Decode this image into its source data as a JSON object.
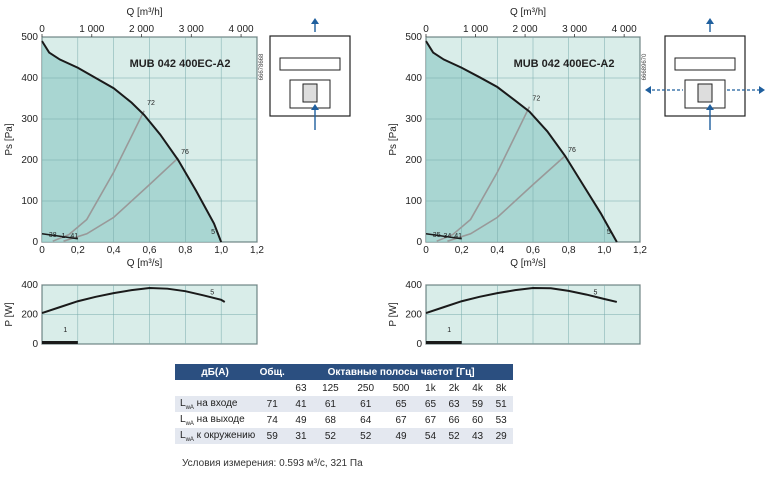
{
  "chart_data": [
    {
      "type": "line",
      "model": "MUB 042 400EC-A2",
      "code": "66678668",
      "top_xlabel": "Q [m³/h]",
      "top_ticks": [
        "0",
        "1 000",
        "2 000",
        "3 000",
        "4 000"
      ],
      "top_tick_values": [
        0,
        1000,
        2000,
        3000,
        4000
      ],
      "xlabel": "Q [m³/s]",
      "ylabel": "Ps [Pa]",
      "x_ticks": [
        "0",
        "0,2",
        "0,4",
        "0,6",
        "0,8",
        "1,0",
        "1,2"
      ],
      "xlim": [
        0,
        1.2
      ],
      "y_ticks": [
        "0",
        "100",
        "200",
        "300",
        "400",
        "500"
      ],
      "ylim": [
        0,
        500
      ],
      "grid": true,
      "series": [
        {
          "name": "5",
          "x": [
            0,
            0.04,
            0.1,
            0.2,
            0.3,
            0.4,
            0.5,
            0.57,
            0.66,
            0.76,
            0.86,
            0.96,
            1.0
          ],
          "y": [
            490,
            462,
            445,
            425,
            400,
            375,
            340,
            310,
            262,
            200,
            125,
            45,
            0
          ]
        },
        {
          "name": "1",
          "x": [
            0,
            0.1,
            0.2
          ],
          "y": [
            20,
            14,
            8
          ]
        }
      ],
      "system_curves": [
        {
          "name": "72",
          "x": [
            0.06,
            0.15,
            0.25,
            0.4,
            0.57
          ],
          "y": [
            2,
            18,
            55,
            170,
            320
          ]
        },
        {
          "name": "76",
          "x": [
            0.12,
            0.25,
            0.4,
            0.6,
            0.76
          ],
          "y": [
            2,
            20,
            60,
            140,
            205
          ]
        }
      ],
      "curve_labels": [
        "72",
        "76",
        "5",
        "38",
        "1",
        "41"
      ],
      "power": {
        "ylabel": "P [W]",
        "y_ticks": [
          "0",
          "200",
          "400"
        ],
        "ylim": [
          0,
          400
        ],
        "x": [
          0,
          0.1,
          0.2,
          0.3,
          0.4,
          0.5,
          0.6,
          0.7,
          0.8,
          0.9,
          1.0,
          1.02
        ],
        "y": [
          210,
          250,
          290,
          320,
          345,
          365,
          380,
          375,
          358,
          330,
          300,
          285
        ],
        "low_x": [
          0,
          0.1,
          0.2
        ],
        "low_y": [
          10,
          10,
          10
        ],
        "labels": [
          "5",
          "1"
        ]
      }
    },
    {
      "type": "line",
      "model": "MUB 042 400EC-A2",
      "code": "66689670",
      "top_xlabel": "Q [m³/h]",
      "top_ticks": [
        "0",
        "1 000",
        "2 000",
        "3 000",
        "4 000"
      ],
      "top_tick_values": [
        0,
        1000,
        2000,
        3000,
        4000
      ],
      "xlabel": "Q [m³/s]",
      "ylabel": "Ps [Pa]",
      "x_ticks": [
        "0",
        "0,2",
        "0,4",
        "0,6",
        "0,8",
        "1,0",
        "1,2"
      ],
      "xlim": [
        0,
        1.2
      ],
      "y_ticks": [
        "0",
        "100",
        "200",
        "300",
        "400",
        "500"
      ],
      "ylim": [
        0,
        500
      ],
      "grid": true,
      "series": [
        {
          "name": "5",
          "x": [
            0,
            0.04,
            0.1,
            0.2,
            0.3,
            0.4,
            0.5,
            0.58,
            0.68,
            0.78,
            0.88,
            0.98,
            1.07
          ],
          "y": [
            490,
            462,
            445,
            425,
            402,
            378,
            345,
            318,
            270,
            210,
            140,
            70,
            0
          ]
        },
        {
          "name": "1",
          "x": [
            0,
            0.1,
            0.2
          ],
          "y": [
            20,
            14,
            8
          ]
        }
      ],
      "system_curves": [
        {
          "name": "72",
          "x": [
            0.06,
            0.15,
            0.25,
            0.4,
            0.58
          ],
          "y": [
            2,
            18,
            55,
            170,
            330
          ]
        },
        {
          "name": "76",
          "x": [
            0.12,
            0.25,
            0.4,
            0.6,
            0.78
          ],
          "y": [
            2,
            20,
            60,
            140,
            210
          ]
        }
      ],
      "curve_labels": [
        "72",
        "76",
        "5",
        "35",
        "34",
        "41"
      ],
      "power": {
        "ylabel": "P [W]",
        "y_ticks": [
          "0",
          "200",
          "400"
        ],
        "ylim": [
          0,
          400
        ],
        "x": [
          0,
          0.1,
          0.2,
          0.3,
          0.4,
          0.5,
          0.6,
          0.7,
          0.8,
          0.9,
          1.0,
          1.07
        ],
        "y": [
          210,
          250,
          290,
          320,
          345,
          365,
          380,
          378,
          360,
          335,
          305,
          285
        ],
        "low_x": [
          0,
          0.1,
          0.2
        ],
        "low_y": [
          10,
          10,
          10
        ],
        "labels": [
          "5",
          "1"
        ]
      }
    }
  ],
  "table": {
    "col_label": "дБ(A)",
    "col_total": "Общ.",
    "col_bands": "Октавные полосы частот [Гц]",
    "freqs": [
      "63",
      "125",
      "250",
      "500",
      "1k",
      "2k",
      "4k",
      "8k"
    ],
    "rows": [
      {
        "l1": "L",
        "sub": "wA",
        "l2": " на входе",
        "total": "71",
        "vals": [
          "41",
          "61",
          "61",
          "65",
          "65",
          "63",
          "59",
          "51"
        ]
      },
      {
        "l1": "L",
        "sub": "wA",
        "l2": " на выходе",
        "total": "74",
        "vals": [
          "49",
          "68",
          "64",
          "67",
          "67",
          "66",
          "60",
          "53"
        ]
      },
      {
        "l1": "L",
        "sub": "wA",
        "l2": " к окружению",
        "total": "59",
        "vals": [
          "31",
          "52",
          "52",
          "49",
          "54",
          "52",
          "43",
          "29"
        ]
      }
    ],
    "condition": "Условия измерения: 0.593 м³/с, 321 Па"
  },
  "colors": {
    "fill": "#a9d6d2",
    "panel": "#d9ede9",
    "curve": "#1a1a1a",
    "system": "#999999",
    "header": "#2b4f80",
    "icon": "#1f5f9e"
  }
}
